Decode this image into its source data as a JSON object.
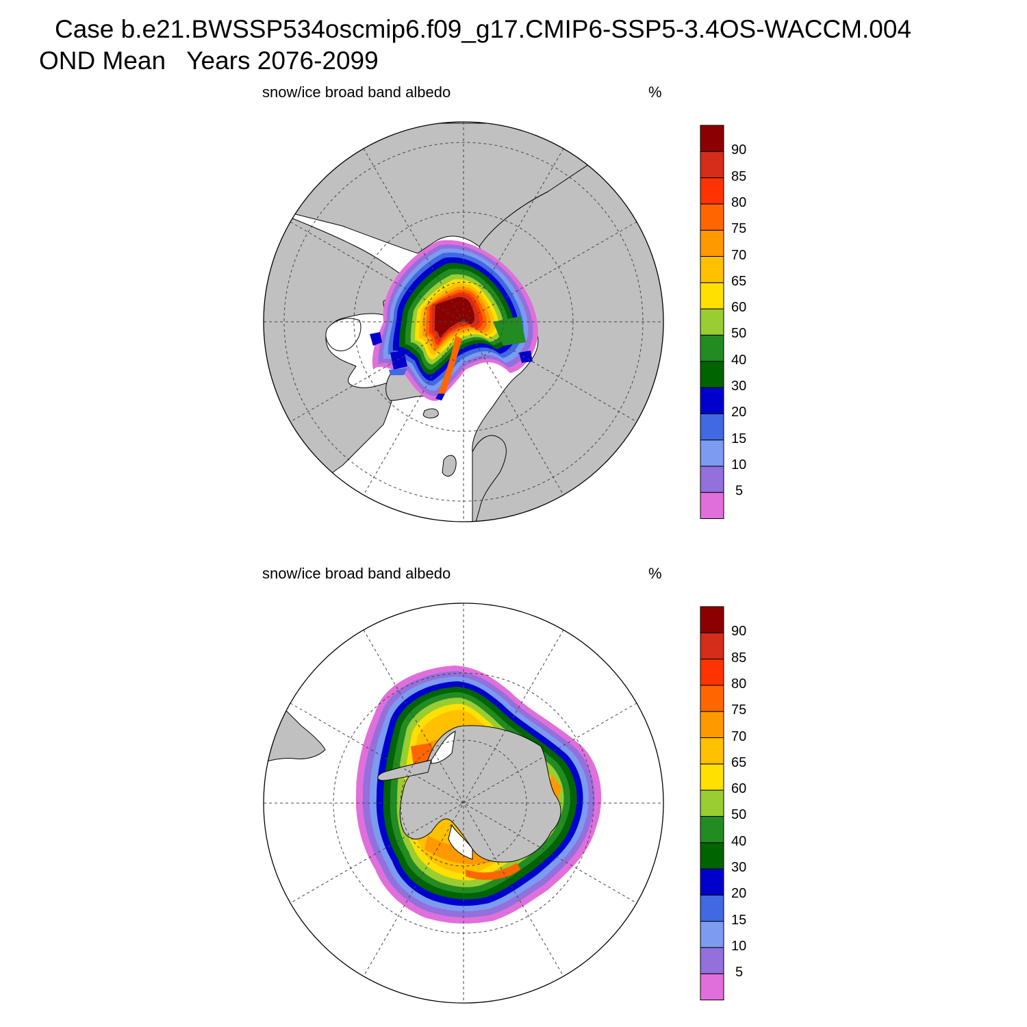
{
  "header": {
    "title_line1": "Case b.e21.BWSSP534oscmip6.f09_g17.CMIP6-SSP5-3.4OS-WACCM.004",
    "title_line2": "OND Mean   Years 2076-2099"
  },
  "panels": [
    {
      "left_string": "snow/ice broad band albedo",
      "right_string": "%",
      "hemisphere": "north"
    },
    {
      "left_string": "snow/ice broad band albedo",
      "right_string": "%",
      "hemisphere": "south"
    }
  ],
  "colorbar": {
    "labels": [
      "5",
      "10",
      "15",
      "20",
      "30",
      "40",
      "50",
      "60",
      "65",
      "70",
      "75",
      "80",
      "85",
      "90"
    ],
    "colors": [
      "#e06fdc",
      "#9370db",
      "#7b9cf0",
      "#4169e1",
      "#0000cd",
      "#006400",
      "#228b22",
      "#9acd32",
      "#ffe000",
      "#ffc000",
      "#ff9900",
      "#ff6600",
      "#ff3300",
      "#d42d1a",
      "#8b0000"
    ]
  },
  "map_colors": {
    "land": "#c0c0c0",
    "ocean": "#ffffff",
    "coast": "#000000",
    "grid": "#444444"
  }
}
